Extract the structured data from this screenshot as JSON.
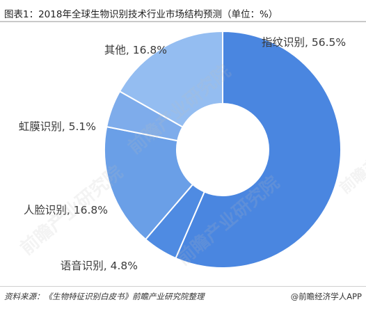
{
  "title": "图表1：2018年全球生物识别技术行业市场结构预测（单位：%）",
  "source": "资料来源：《生物特征识别白皮书》前瞻产业研究院整理",
  "credit": "@前瞻经济学人APP",
  "watermark": "前瞻产业研究院",
  "chart_data": {
    "type": "pie",
    "title": "图表1：2018年全球生物识别技术行业市场结构预测（单位：%）",
    "unit": "%",
    "donut": true,
    "slices": [
      {
        "label": "指纹识别",
        "value": 56.5,
        "display": "指纹识别, 56.5%",
        "color": "#4a86e0"
      },
      {
        "label": "语音识别",
        "value": 4.8,
        "display": "语音识别, 4.8%",
        "color": "#4f8be2"
      },
      {
        "label": "人脸识别",
        "value": 16.8,
        "display": "人脸识别, 16.8%",
        "color": "#6a9fe7"
      },
      {
        "label": "虹膜识别",
        "value": 5.1,
        "display": "虹膜识别, 5.1%",
        "color": "#7eaceb"
      },
      {
        "label": "其他",
        "value": 16.8,
        "display": "其他, 16.8%",
        "color": "#94bdf1"
      }
    ]
  }
}
